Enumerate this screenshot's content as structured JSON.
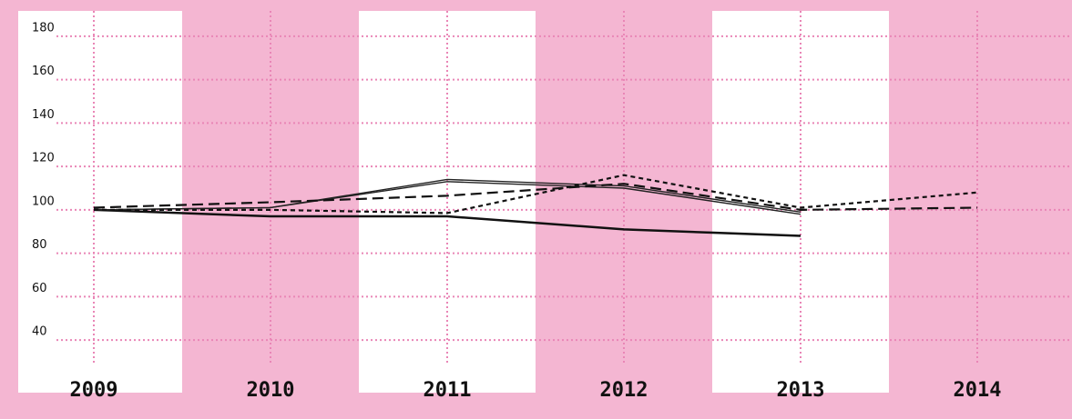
{
  "chart_data": {
    "type": "line",
    "categories": [
      "2009",
      "2010",
      "2011",
      "2012",
      "2013",
      "2014"
    ],
    "series": [
      {
        "color": "#111111",
        "style": "solid-thick",
        "values": [
          100,
          97,
          97,
          91,
          88,
          null
        ]
      },
      {
        "color": "#222222",
        "style": "solid-thin",
        "values": [
          100,
          101,
          114,
          111,
          99,
          null
        ]
      },
      {
        "color": "#222222",
        "style": "solid-thin",
        "values": [
          100,
          101,
          113,
          110,
          98,
          null
        ]
      },
      {
        "color": "#111111",
        "style": "long-dash",
        "values": [
          101,
          103.5,
          106.5,
          112,
          100,
          101
        ]
      },
      {
        "color": "#111111",
        "style": "short-dash",
        "values": [
          100,
          100,
          98.5,
          116,
          101,
          108
        ]
      }
    ],
    "ylim": [
      30,
      190
    ],
    "yticks": [
      40,
      60,
      80,
      100,
      120,
      140,
      160,
      180
    ],
    "grid": true,
    "band_colors": [
      "#ffffff",
      "#f4b6d2"
    ],
    "grid_color": "#e986b6"
  }
}
